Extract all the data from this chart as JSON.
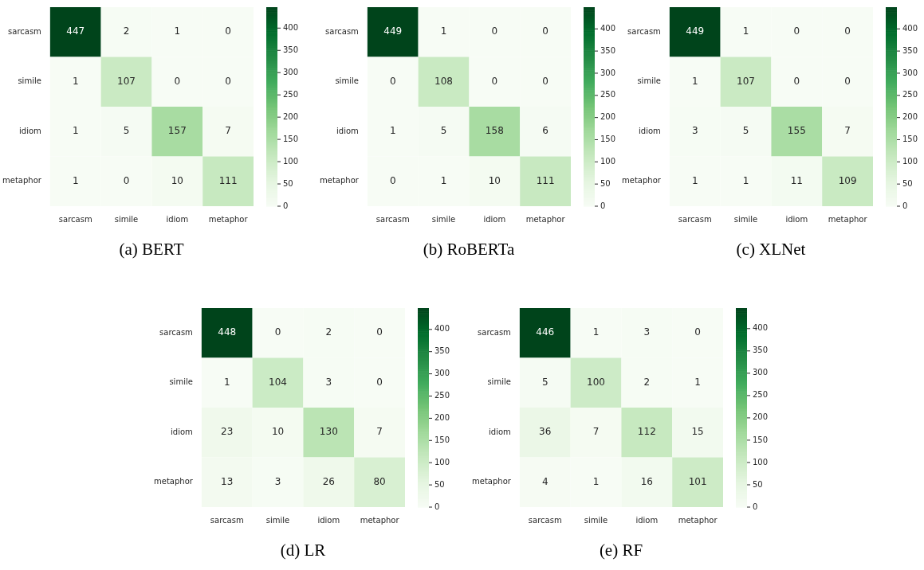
{
  "chart_data": [
    {
      "type": "heatmap",
      "data_labels": true,
      "title": "(a) BERT",
      "categories": [
        "sarcasm",
        "simile",
        "idiom",
        "metaphor"
      ],
      "y_categories": [
        "sarcasm",
        "simile",
        "idiom",
        "metaphor"
      ],
      "cells": [
        [
          447,
          2,
          1,
          0
        ],
        [
          1,
          107,
          0,
          0
        ],
        [
          1,
          5,
          157,
          7
        ],
        [
          1,
          0,
          10,
          111
        ]
      ],
      "clim": [
        0,
        447
      ],
      "cticks": [
        0,
        50,
        100,
        150,
        200,
        250,
        300,
        350,
        400
      ]
    },
    {
      "type": "heatmap",
      "data_labels": true,
      "title": "(b) RoBERTa",
      "categories": [
        "sarcasm",
        "simile",
        "idiom",
        "metaphor"
      ],
      "y_categories": [
        "sarcasm",
        "simile",
        "idiom",
        "metaphor"
      ],
      "cells": [
        [
          449,
          1,
          0,
          0
        ],
        [
          0,
          108,
          0,
          0
        ],
        [
          1,
          5,
          158,
          6
        ],
        [
          0,
          1,
          10,
          111
        ]
      ],
      "clim": [
        0,
        449
      ],
      "cticks": [
        0,
        50,
        100,
        150,
        200,
        250,
        300,
        350,
        400
      ]
    },
    {
      "type": "heatmap",
      "data_labels": true,
      "title": "(c) XLNet",
      "categories": [
        "sarcasm",
        "simile",
        "idiom",
        "metaphor"
      ],
      "y_categories": [
        "sarcasm",
        "simile",
        "idiom",
        "metaphor"
      ],
      "cells": [
        [
          449,
          1,
          0,
          0
        ],
        [
          1,
          107,
          0,
          0
        ],
        [
          3,
          5,
          155,
          7
        ],
        [
          1,
          1,
          11,
          109
        ]
      ],
      "clim": [
        0,
        449
      ],
      "cticks": [
        0,
        50,
        100,
        150,
        200,
        250,
        300,
        350,
        400
      ]
    },
    {
      "type": "heatmap",
      "data_labels": true,
      "title": "(d) LR",
      "categories": [
        "sarcasm",
        "simile",
        "idiom",
        "metaphor"
      ],
      "y_categories": [
        "sarcasm",
        "simile",
        "idiom",
        "metaphor"
      ],
      "cells": [
        [
          448,
          0,
          2,
          0
        ],
        [
          1,
          104,
          3,
          0
        ],
        [
          23,
          10,
          130,
          7
        ],
        [
          13,
          3,
          26,
          80
        ]
      ],
      "clim": [
        0,
        448
      ],
      "cticks": [
        0,
        50,
        100,
        150,
        200,
        250,
        300,
        350,
        400
      ]
    },
    {
      "type": "heatmap",
      "data_labels": true,
      "title": "(e) RF",
      "categories": [
        "sarcasm",
        "simile",
        "idiom",
        "metaphor"
      ],
      "y_categories": [
        "sarcasm",
        "simile",
        "idiom",
        "metaphor"
      ],
      "cells": [
        [
          446,
          1,
          3,
          0
        ],
        [
          5,
          100,
          2,
          1
        ],
        [
          36,
          7,
          112,
          15
        ],
        [
          4,
          1,
          16,
          101
        ]
      ],
      "clim": [
        0,
        446
      ],
      "cticks": [
        0,
        50,
        100,
        150,
        200,
        250,
        300,
        350,
        400
      ]
    }
  ]
}
